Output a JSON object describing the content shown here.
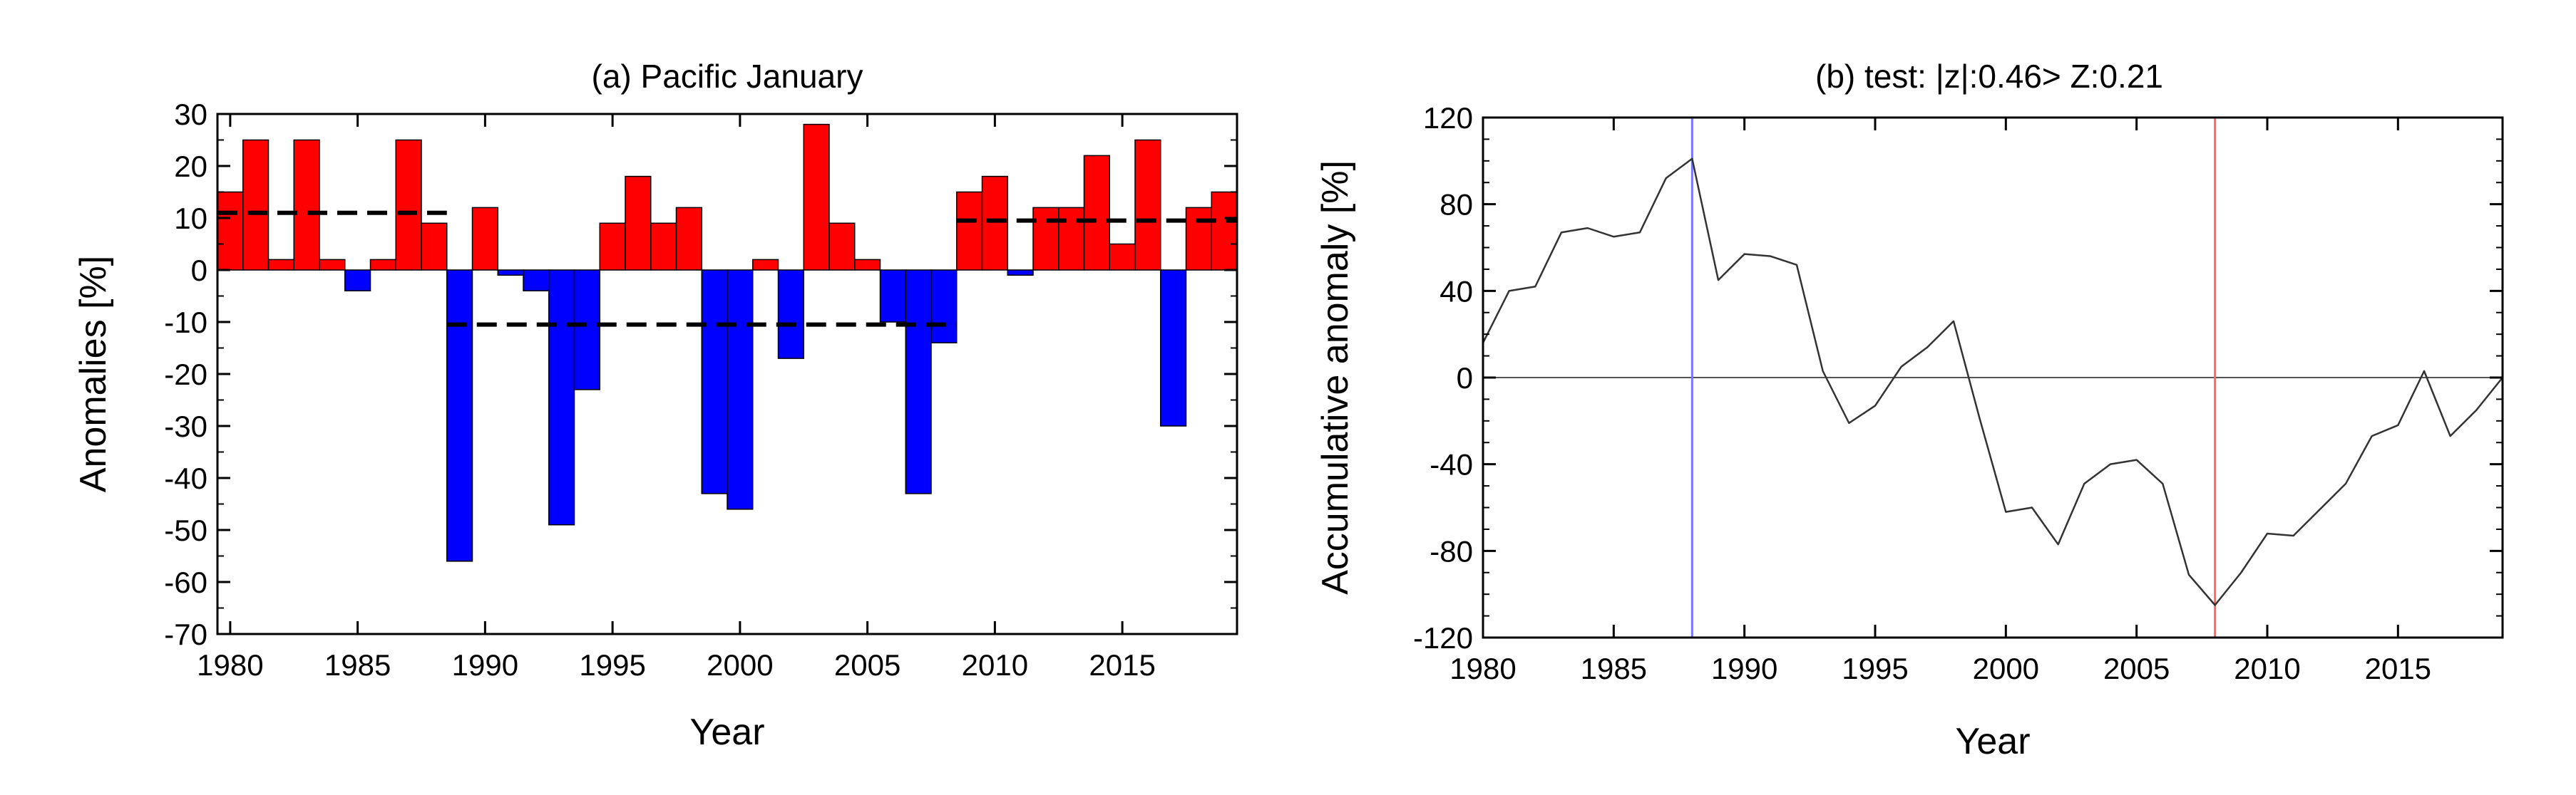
{
  "chart_data": [
    {
      "type": "bar",
      "title": "(a)  Pacific     January",
      "xlabel": "Year",
      "ylabel": "Anomalies [%]",
      "ylim": [
        -70,
        30
      ],
      "xlim": [
        1979.5,
        2019.5
      ],
      "yticks": [
        30,
        20,
        10,
        0,
        -10,
        -20,
        -30,
        -40,
        -50,
        -60,
        -70
      ],
      "ytick_labels": [
        "30",
        "20",
        "10",
        "0",
        "-10",
        "-20",
        "-30",
        "-40",
        "-50",
        "-60",
        "-70"
      ],
      "xticks": [
        1980,
        1985,
        1990,
        1995,
        2000,
        2005,
        2010,
        2015
      ],
      "xtick_labels": [
        "1980",
        "1985",
        "1990",
        "1995",
        "2000",
        "2005",
        "2010",
        "2015"
      ],
      "years": [
        1980,
        1981,
        1982,
        1983,
        1984,
        1985,
        1986,
        1987,
        1988,
        1989,
        1990,
        1991,
        1992,
        1993,
        1994,
        1995,
        1996,
        1997,
        1998,
        1999,
        2000,
        2001,
        2002,
        2003,
        2004,
        2005,
        2006,
        2007,
        2008,
        2009,
        2010,
        2011,
        2012,
        2013,
        2014,
        2015,
        2016,
        2017,
        2018,
        2019
      ],
      "values": [
        15,
        25,
        2,
        25,
        2,
        -4,
        2,
        25,
        9,
        -56,
        12,
        -1,
        -4,
        -49,
        -23,
        9,
        18,
        9,
        12,
        -43,
        -46,
        2,
        -17,
        28,
        9,
        2,
        -10,
        -43,
        -14,
        15,
        18,
        -1,
        12,
        12,
        22,
        5,
        25,
        -30,
        12,
        15
      ],
      "positive_color": "#ff0000",
      "negative_color": "#0000ff",
      "mean_lines": [
        {
          "from": 1980,
          "to": 1988,
          "value": 11
        },
        {
          "from": 1989,
          "to": 2008,
          "value": -10.5
        },
        {
          "from": 2009,
          "to": 2019,
          "value": 9.5
        }
      ]
    },
    {
      "type": "line",
      "title": "(b)  test: |z|:0.46> Z:0.21",
      "xlabel": "Year",
      "ylabel": "Accumulative anomaly [%]",
      "ylim": [
        -120,
        120
      ],
      "xlim": [
        1980,
        2019
      ],
      "yticks": [
        120,
        80,
        40,
        0,
        -40,
        -80,
        -120
      ],
      "ytick_labels": [
        "120",
        "80",
        "40",
        "0",
        "-40",
        "-80",
        "-120"
      ],
      "xticks": [
        1980,
        1985,
        1990,
        1995,
        2000,
        2005,
        2010,
        2015
      ],
      "xtick_labels": [
        "1980",
        "1985",
        "1990",
        "1995",
        "2000",
        "2005",
        "2010",
        "2015"
      ],
      "x": [
        1980,
        1981,
        1982,
        1983,
        1984,
        1985,
        1986,
        1987,
        1988,
        1989,
        1990,
        1991,
        1992,
        1993,
        1994,
        1995,
        1996,
        1997,
        1998,
        1999,
        2000,
        2001,
        2002,
        2003,
        2004,
        2005,
        2006,
        2007,
        2008,
        2009,
        2010,
        2011,
        2012,
        2013,
        2014,
        2015,
        2016,
        2017,
        2018,
        2019
      ],
      "y": [
        16,
        40,
        42,
        67,
        69,
        65,
        67,
        92,
        101,
        45,
        57,
        56,
        52,
        3,
        -21,
        -13,
        5,
        14,
        26,
        -19,
        -62,
        -60,
        -77,
        -49,
        -40,
        -38,
        -49,
        -91,
        -105,
        -90,
        -72,
        -73,
        -61,
        -49,
        -27,
        -22,
        3,
        -27,
        -15,
        0
      ],
      "line_color": "#333333",
      "vlines": [
        {
          "x": 1988,
          "color": "#7777ff"
        },
        {
          "x": 2008,
          "color": "#ff6666"
        }
      ],
      "hline": 0
    }
  ]
}
